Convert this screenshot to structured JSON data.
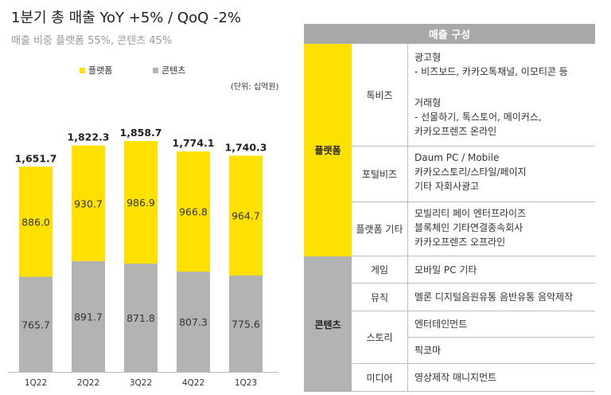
{
  "header": {
    "title": "1분기 총 매출  YoY +5% / QoQ -2%",
    "subtitle": "매출 비중     플랫폼 55%, 콘텐츠 45%"
  },
  "legend": {
    "platform": "플랫폼",
    "content": "콘텐츠"
  },
  "unit_label": "(단위: 십억원)",
  "colors": {
    "platform": "#ffe100",
    "content": "#b3b3b3",
    "header_bg": "#a8a8a8"
  },
  "chart_data": {
    "type": "bar",
    "stacked": true,
    "categories": [
      "1Q22",
      "2Q22",
      "3Q22",
      "4Q22",
      "1Q23"
    ],
    "series": [
      {
        "name": "콘텐츠",
        "values": [
          765.7,
          891.7,
          871.8,
          807.3,
          775.6
        ],
        "labels": [
          "765.7",
          "891.7",
          "871.8",
          "807.3",
          "775.6"
        ]
      },
      {
        "name": "플랫폼",
        "values": [
          886.0,
          930.7,
          986.9,
          966.8,
          964.7
        ],
        "labels": [
          "886.0",
          "930.7",
          "986.9",
          "966.8",
          "964.7"
        ]
      }
    ],
    "totals": [
      1651.7,
      1822.3,
      1858.7,
      1774.1,
      1740.3
    ],
    "total_labels": [
      "1,651.7",
      "1,822.3",
      "1,858.7",
      "1,774.1",
      "1,740.3"
    ],
    "ylim": [
      0,
      1950
    ]
  },
  "table": {
    "title": "매출 구성",
    "platform": {
      "label": "플랫폼",
      "talkbiz": {
        "name": "톡비즈",
        "block1": [
          "광고형",
          "- 비즈보드, 카카오톡채널, 이모티콘 등"
        ],
        "block2": [
          "거래형",
          "- 선물하기, 톡스토어, 메이커스,",
          "카카오프렌즈 온라인"
        ]
      },
      "portalbiz": {
        "name": "포털비즈",
        "lines": [
          "Daum PC / Mobile",
          "카카오스토리/스타일/페이지",
          "기타 자회사광고"
        ]
      },
      "etc": {
        "name": "플랫폼 기타",
        "lines": [
          "모빌리티     페이     엔터프라이즈",
          "블록체인     기타연결종속회사",
          "카카오프렌즈 오프라인"
        ]
      }
    },
    "content": {
      "label": "콘텐츠",
      "game": {
        "name": "게임",
        "line": "모바일      PC       기타"
      },
      "music": {
        "name": "뮤직",
        "line": "멜론  디지털음원유통  음반유통  음악제작"
      },
      "story": {
        "name": "스토리",
        "lines": [
          "엔터테인먼트",
          "픽코마"
        ]
      },
      "media": {
        "name": "미디어",
        "line": "영상제작     매니지먼트"
      }
    }
  }
}
